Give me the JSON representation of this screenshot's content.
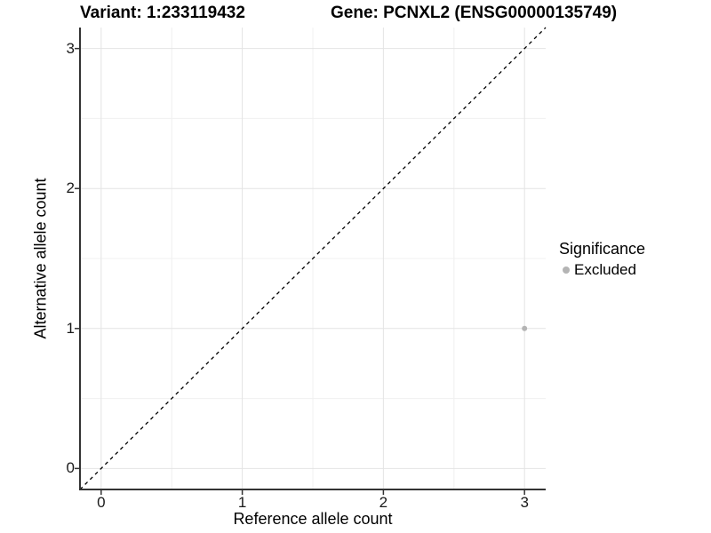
{
  "title": {
    "left": "Variant: 1:233119432",
    "right": "Gene: PCNXL2 (ENSG00000135749)"
  },
  "legend": {
    "title": "Significance",
    "items": [
      {
        "label": "Excluded",
        "color": "#b4b4b4"
      }
    ]
  },
  "chart_data": {
    "type": "scatter",
    "title": "Variant: 1:233119432   Gene: PCNXL2 (ENSG00000135749)",
    "xlabel": "Reference allele count",
    "ylabel": "Alternative allele count",
    "xlim": [
      -0.15,
      3.15
    ],
    "ylim": [
      -0.15,
      3.15
    ],
    "x_ticks": [
      0,
      1,
      2,
      3
    ],
    "y_ticks": [
      0,
      1,
      2,
      3
    ],
    "minor_ticks": [
      0.5,
      1.5,
      2.5
    ],
    "grid": {
      "major_color": "#e4e4e4",
      "minor_color": "#f0f0f0",
      "on": true
    },
    "axis_line_color": "#333333",
    "reference_line": {
      "slope": 1,
      "intercept": 0,
      "style": "dashed",
      "color": "#000000"
    },
    "series": [
      {
        "name": "Excluded",
        "color": "#b4b4b4",
        "points": [
          {
            "x": 3,
            "y": 1
          }
        ]
      }
    ],
    "legend_position": "right",
    "legend_title": "Significance"
  }
}
